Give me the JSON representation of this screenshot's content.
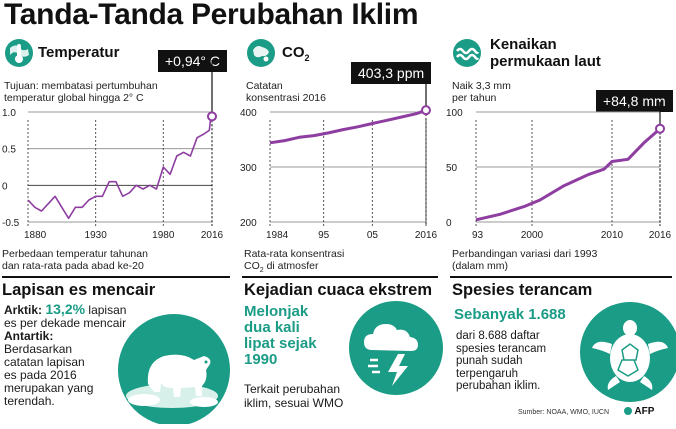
{
  "title": "Tanda-Tanda Perubahan Iklim",
  "colors": {
    "line": "#8e3da0",
    "teal": "#1a9c86",
    "dark": "#111111"
  },
  "temperature": {
    "heading": "Temperatur",
    "note": [
      "Tujuan: membatasi pertumbuhan",
      "temperatur global hingga 2° C"
    ],
    "callout": "+0,94° C",
    "caption": [
      "Perbedaan temperatur tahunan",
      "dan rata-rata pada abad ke-20"
    ]
  },
  "co2": {
    "heading": "CO",
    "heading_sub": "2",
    "note": [
      "Catatan",
      "konsentrasi  2016"
    ],
    "callout": "403,3 ppm",
    "caption_line1": "Rata-rata konsentrasi",
    "caption_line2_pre": "CO",
    "caption_line2_sub": "2",
    "caption_line2_post": " di atmosfer"
  },
  "sea": {
    "heading": [
      "Kenaikan",
      "permukaan laut"
    ],
    "note": [
      "Naik 3,3 mm",
      "per tahun"
    ],
    "callout": "+84,8 mm",
    "caption": [
      "Perbandingan variasi dari 1993",
      "(dalam mm)"
    ]
  },
  "ice": {
    "heading": "Lapisan es mencair",
    "arctic_label": "Arktik:",
    "arctic_value": "13,2%",
    "arctic_rest_1": "lapisan",
    "arctic_rest_2": "es per dekade mencair",
    "antarctic_label": "Antartik:",
    "antarctic_text": [
      "Berdasarkan",
      "catatan lapisan",
      "es pada 2016",
      "merupakan yang",
      "terendah."
    ]
  },
  "weather": {
    "heading": "Kejadian cuaca ekstrem",
    "highlight": [
      "Melonjak",
      "dua kali",
      "lipat sejak",
      "1990"
    ],
    "text": [
      "Terkait perubahan",
      "iklim, sesuai WMO"
    ]
  },
  "species": {
    "heading": "Spesies terancam",
    "highlight": "Sebanyak 1.688",
    "text": [
      "dari 8.688 daftar",
      "spesies terancam",
      "punah sudah",
      "terpengaruh",
      "perubahan iklim."
    ]
  },
  "footer": {
    "source": "Sumber: NOAA, WMO, IUCN",
    "brand": "AFP"
  },
  "chart_data": [
    {
      "type": "line",
      "x": [
        1880,
        1885,
        1890,
        1895,
        1900,
        1905,
        1910,
        1915,
        1920,
        1925,
        1930,
        1935,
        1940,
        1945,
        1950,
        1955,
        1960,
        1965,
        1970,
        1975,
        1980,
        1985,
        1990,
        1995,
        2000,
        2005,
        2010,
        2014,
        2015,
        2016
      ],
      "y": [
        -0.2,
        -0.3,
        -0.35,
        -0.25,
        -0.15,
        -0.3,
        -0.45,
        -0.3,
        -0.3,
        -0.2,
        -0.15,
        -0.15,
        0.05,
        0.05,
        -0.15,
        -0.1,
        0.0,
        -0.05,
        0.0,
        -0.05,
        0.25,
        0.15,
        0.4,
        0.45,
        0.4,
        0.65,
        0.7,
        0.75,
        0.9,
        0.94
      ],
      "xticks": [
        "1880",
        "1930",
        "1980",
        "2016"
      ],
      "yticks": [
        "-0.5",
        "0",
        "0.5",
        "1.0"
      ],
      "xlim": [
        1880,
        2016
      ],
      "ylim": [
        -0.5,
        1.0
      ],
      "marker": {
        "x": 2016,
        "y": 0.94
      }
    },
    {
      "type": "line",
      "x": [
        1984,
        1987,
        1990,
        1993,
        1996,
        1999,
        2002,
        2005,
        2008,
        2011,
        2014,
        2016
      ],
      "y": [
        344,
        348,
        354,
        357,
        362,
        368,
        373,
        379,
        385,
        391,
        397,
        403.3
      ],
      "xticks": [
        "1984",
        "95",
        "05",
        "2016"
      ],
      "yticks": [
        "200",
        "300",
        "400"
      ],
      "xlim": [
        1984,
        2016
      ],
      "ylim": [
        200,
        400
      ],
      "marker": {
        "x": 2016,
        "y": 403.3
      }
    },
    {
      "type": "line",
      "x": [
        1993,
        1996,
        1999,
        2001,
        2004,
        2007,
        2009,
        2010,
        2012,
        2014,
        2016
      ],
      "y": [
        2,
        7,
        14,
        20,
        33,
        43,
        48,
        55,
        57,
        72,
        84.8
      ],
      "xticks": [
        "93",
        "2000",
        "2010",
        "2016"
      ],
      "yticks": [
        "0",
        "50",
        "100"
      ],
      "xlim": [
        1993,
        2016
      ],
      "ylim": [
        0,
        100
      ],
      "marker": {
        "x": 2016,
        "y": 84.8
      }
    }
  ]
}
